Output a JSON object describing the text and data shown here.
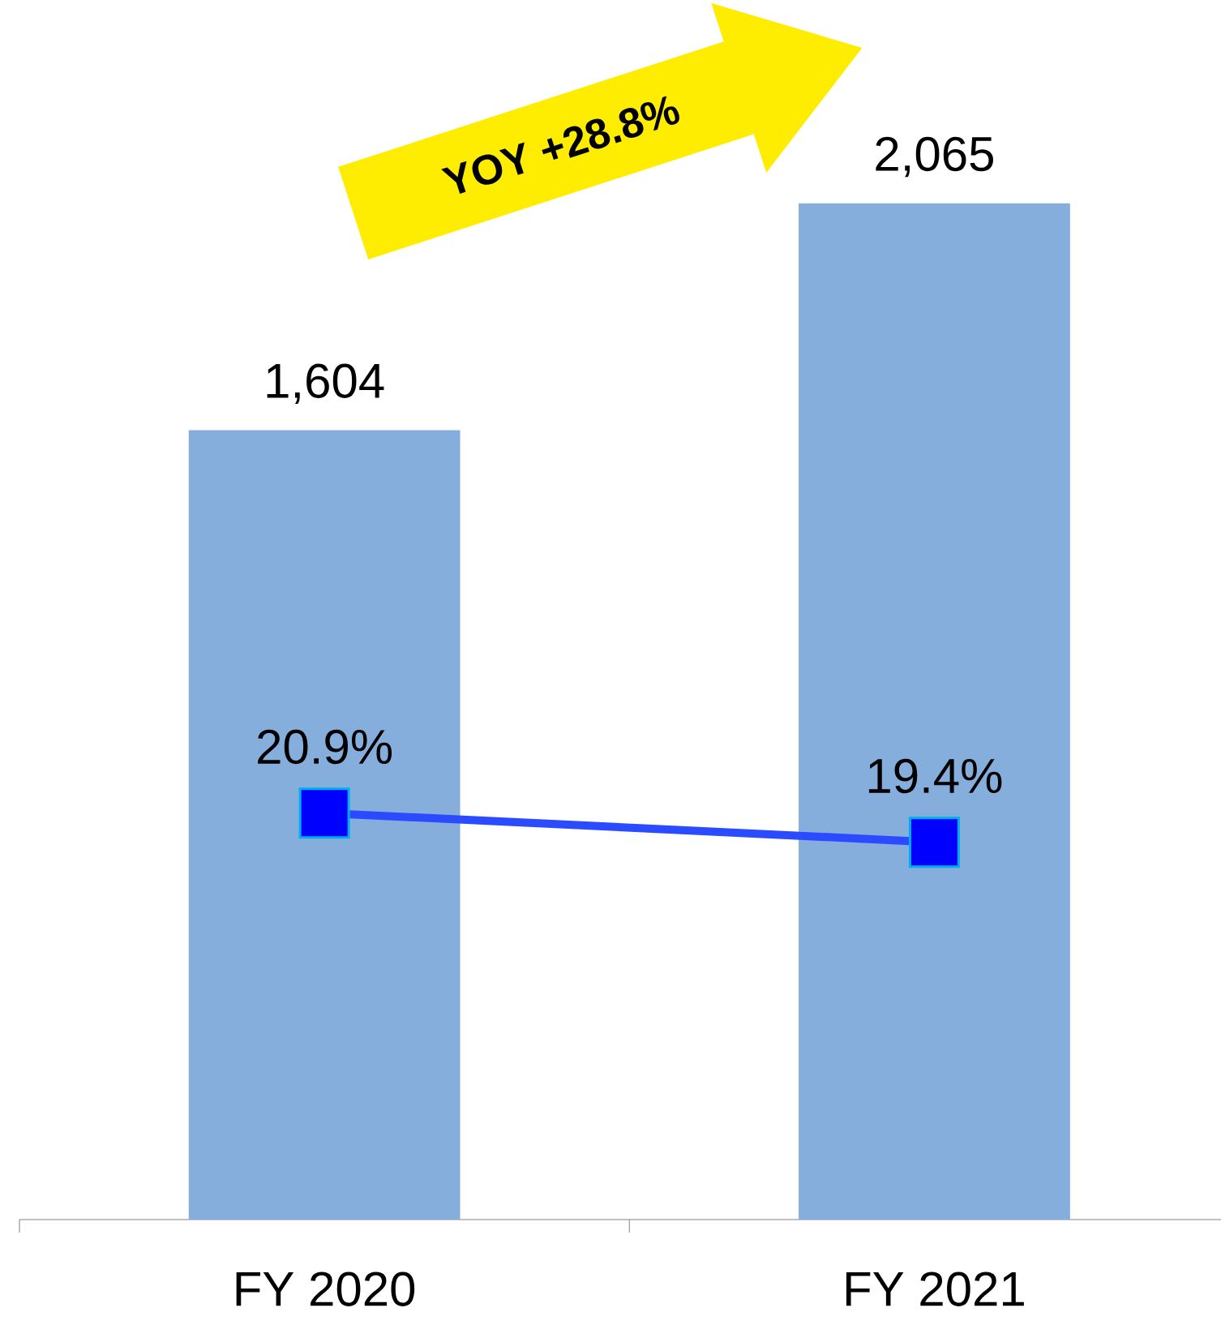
{
  "chart_data": {
    "type": "bar",
    "categories": [
      "FY 2020",
      "FY 2021"
    ],
    "series": [
      {
        "color": "#86aedc",
        "values": [
          1604,
          2065
        ],
        "value_labels": [
          "1,604",
          "2,065"
        ]
      },
      {
        "type": "line",
        "axis": "y2",
        "color": "#2a4bff",
        "colors": [
          "#0000ff",
          "#0000ff"
        ],
        "marker": "square",
        "values": [
          20.9,
          19.4
        ],
        "value_labels": [
          "20.9%",
          "19.4%"
        ]
      }
    ],
    "annotations": [
      "YOY +28.8%"
    ]
  }
}
